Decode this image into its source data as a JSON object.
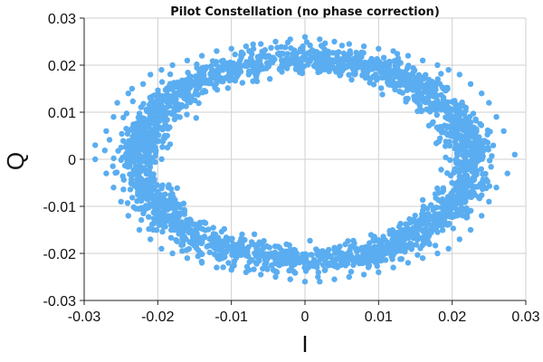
{
  "chart_data": {
    "type": "scatter",
    "title": "Pilot Constellation (no phase correction)",
    "xlabel": "I",
    "ylabel": "Q",
    "xlim": [
      -0.03,
      0.03
    ],
    "ylim": [
      -0.03,
      0.03
    ],
    "xticks": [
      -0.03,
      -0.02,
      -0.01,
      0,
      0.01,
      0.02,
      0.03
    ],
    "yticks": [
      -0.03,
      -0.02,
      -0.01,
      0,
      0.01,
      0.02,
      0.03
    ],
    "xtick_labels": [
      "-0.03",
      "-0.02",
      "-0.01",
      "0",
      "0.01",
      "0.02",
      "0.03"
    ],
    "ytick_labels": [
      "-0.03",
      "-0.02",
      "-0.01",
      "0",
      "0.01",
      "0.02",
      "0.03"
    ],
    "grid": true,
    "colors": {
      "points": "#5aadf0"
    },
    "series": [
      {
        "shape": "noisy ring",
        "center": [
          0.0,
          0.0
        ],
        "radius_i": 0.0225,
        "radius_q": 0.0215,
        "spread": 0.0025,
        "x": [
          -0.0285,
          -0.027,
          -0.026,
          -0.0255,
          -0.024,
          -0.0235,
          -0.022,
          -0.021,
          -0.0195,
          -0.018,
          -0.016,
          -0.014,
          -0.012,
          -0.01,
          -0.008,
          -0.006,
          -0.004,
          -0.002,
          0.0,
          0.002,
          0.004,
          0.006,
          0.008,
          0.01,
          0.012,
          0.014,
          0.016,
          0.018,
          0.0195,
          0.021,
          0.0225,
          0.024,
          0.025,
          0.026,
          0.027,
          0.0285,
          0.0275,
          0.026,
          0.025,
          0.024,
          0.0225,
          0.021,
          0.0195,
          0.018,
          0.016,
          0.014,
          0.012,
          0.01,
          0.008,
          0.006,
          0.004,
          0.002,
          0.0,
          -0.002,
          -0.004,
          -0.006,
          -0.008,
          -0.01,
          -0.012,
          -0.014,
          -0.016,
          -0.018,
          -0.0195,
          -0.021,
          -0.0225,
          -0.024,
          -0.025,
          -0.026,
          -0.027,
          -0.0285
        ],
        "y": [
          0.003,
          0.006,
          0.009,
          0.012,
          0.014,
          0.015,
          0.016,
          0.018,
          0.019,
          0.02,
          0.021,
          0.022,
          0.023,
          0.0235,
          0.024,
          0.0245,
          0.025,
          0.0255,
          0.026,
          0.0255,
          0.025,
          0.0245,
          0.024,
          0.0235,
          0.023,
          0.022,
          0.021,
          0.02,
          0.019,
          0.018,
          0.016,
          0.014,
          0.012,
          0.009,
          0.006,
          0.001,
          -0.003,
          -0.006,
          -0.009,
          -0.012,
          -0.015,
          -0.017,
          -0.019,
          -0.02,
          -0.021,
          -0.022,
          -0.023,
          -0.024,
          -0.0245,
          -0.025,
          -0.0255,
          -0.026,
          -0.026,
          -0.0255,
          -0.025,
          -0.0245,
          -0.024,
          -0.0235,
          -0.023,
          -0.022,
          -0.021,
          -0.02,
          -0.019,
          -0.017,
          -0.015,
          -0.012,
          -0.009,
          -0.006,
          -0.003,
          0.0
        ]
      }
    ]
  }
}
